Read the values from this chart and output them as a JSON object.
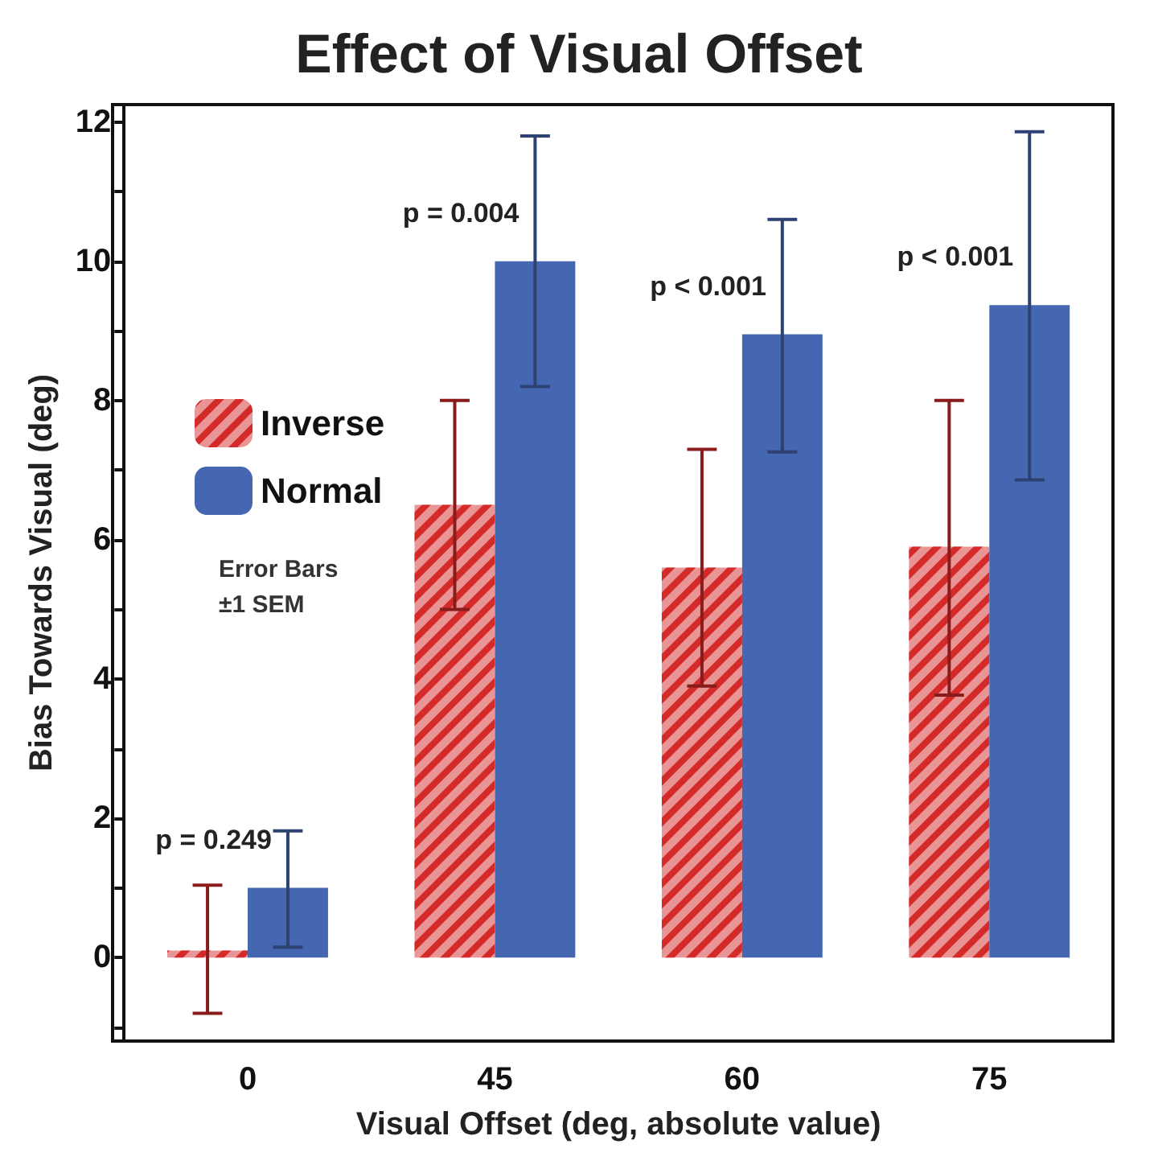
{
  "chart_data": {
    "type": "bar",
    "title": "Effect of Visual Offset",
    "xlabel": "Visual Offset (deg, absolute value)",
    "ylabel": "Bias Towards Visual (deg)",
    "categories": [
      "0",
      "45",
      "60",
      "75"
    ],
    "series": [
      {
        "name": "Inverse",
        "color": "#d42a2a",
        "values": [
          0.1,
          6.5,
          5.6,
          5.9
        ],
        "errors": [
          [
            -0.8,
            1.04
          ],
          [
            5.0,
            8.0
          ],
          [
            3.9,
            7.3
          ],
          [
            3.77,
            8.0
          ]
        ]
      },
      {
        "name": "Normal",
        "color": "#4566b0",
        "values": [
          1.0,
          10.0,
          8.95,
          9.37
        ],
        "errors": [
          [
            0.15,
            1.82
          ],
          [
            8.2,
            11.8
          ],
          [
            7.26,
            10.6
          ],
          [
            6.86,
            11.86
          ]
        ]
      }
    ],
    "ylim": [
      -1.2,
      12.25
    ],
    "yticks": [
      {
        "value": -1,
        "label": null
      },
      0,
      {
        "value": 1,
        "label": null
      },
      2,
      {
        "value": 3,
        "label": null
      },
      4,
      {
        "value": 5,
        "label": null
      },
      6,
      {
        "value": 7,
        "label": null
      },
      8,
      {
        "value": 9,
        "label": null
      },
      10,
      {
        "value": 11,
        "label": null
      },
      12
    ],
    "annotations": [
      "p = 0.249",
      "p = 0.004",
      "p < 0.001",
      "p < 0.001",
      "Error Bars ±1 SEM"
    ],
    "legend": "left",
    "grid": false
  }
}
